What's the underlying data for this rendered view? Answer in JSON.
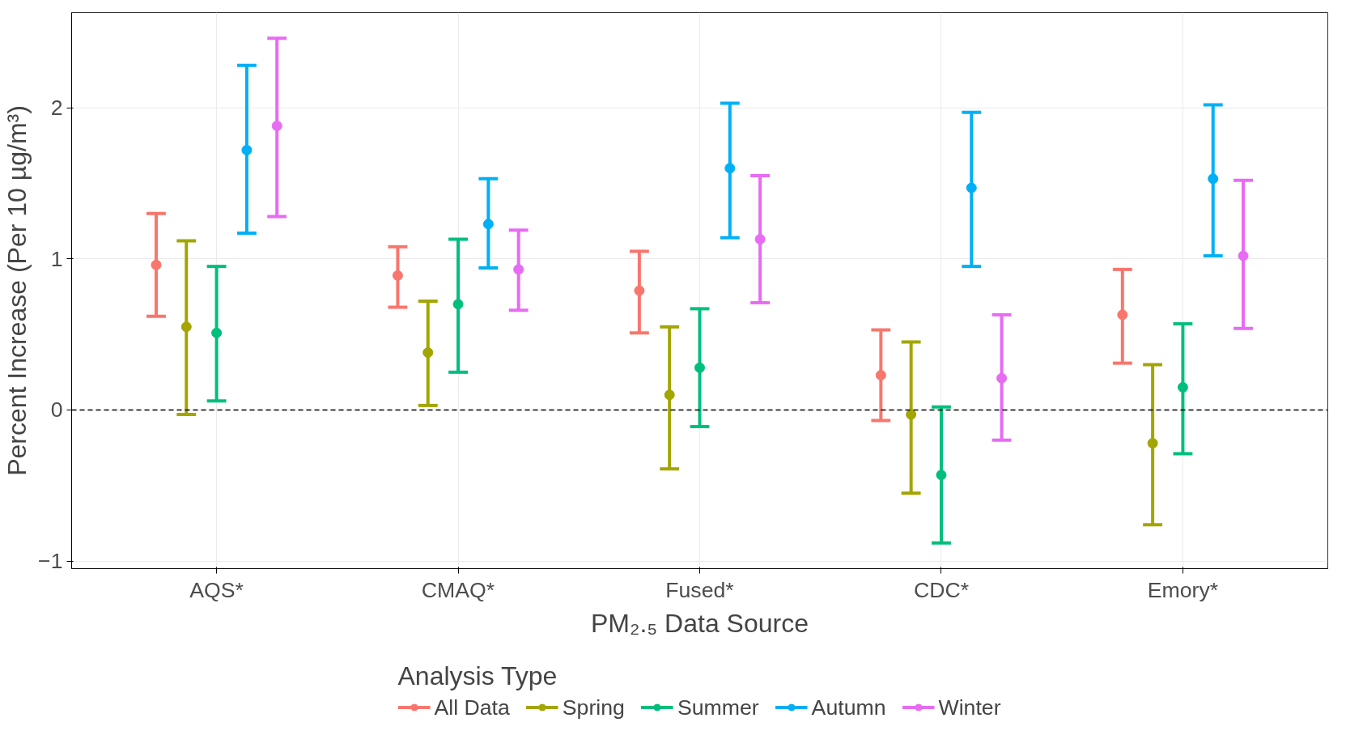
{
  "chart_data": {
    "type": "scatter",
    "xlabel": "PM₂.₅ Data Source",
    "ylabel": "Percent Increase (Per 10 µg/m³)",
    "legend_title": "Analysis Type",
    "categories": [
      "AQS*",
      "CMAQ*",
      "Fused*",
      "CDC*",
      "Emory*"
    ],
    "series": [
      {
        "name": "All Data",
        "color": "#f8766d",
        "values": [
          0.96,
          0.89,
          0.79,
          0.23,
          0.63
        ],
        "errors": [
          [
            0.62,
            1.3
          ],
          [
            0.68,
            1.08
          ],
          [
            0.51,
            1.05
          ],
          [
            -0.07,
            0.53
          ],
          [
            0.31,
            0.93
          ]
        ]
      },
      {
        "name": "Spring",
        "color": "#a3a500",
        "values": [
          0.55,
          0.38,
          0.1,
          -0.03,
          -0.22
        ],
        "errors": [
          [
            -0.03,
            1.12
          ],
          [
            0.03,
            0.72
          ],
          [
            -0.39,
            0.55
          ],
          [
            -0.55,
            0.45
          ],
          [
            -0.76,
            0.3
          ]
        ]
      },
      {
        "name": "Summer",
        "color": "#00bf7d",
        "values": [
          0.51,
          0.7,
          0.28,
          -0.43,
          0.15
        ],
        "errors": [
          [
            0.06,
            0.95
          ],
          [
            0.25,
            1.13
          ],
          [
            -0.11,
            0.67
          ],
          [
            -0.88,
            0.02
          ],
          [
            -0.29,
            0.57
          ]
        ]
      },
      {
        "name": "Autumn",
        "color": "#00b0f6",
        "values": [
          1.72,
          1.23,
          1.6,
          1.47,
          1.53
        ],
        "errors": [
          [
            1.17,
            2.28
          ],
          [
            0.94,
            1.53
          ],
          [
            1.14,
            2.03
          ],
          [
            0.95,
            1.97
          ],
          [
            1.02,
            2.02
          ]
        ]
      },
      {
        "name": "Winter",
        "color": "#e76bf3",
        "values": [
          1.88,
          0.93,
          1.13,
          0.21,
          1.02
        ],
        "errors": [
          [
            1.28,
            2.46
          ],
          [
            0.66,
            1.19
          ],
          [
            0.71,
            1.55
          ],
          [
            -0.2,
            0.63
          ],
          [
            0.54,
            1.52
          ]
        ]
      }
    ],
    "ylim": [
      -1.05,
      2.63
    ],
    "yticks": [
      -1,
      0,
      1,
      2
    ],
    "grid": true,
    "legend": "bottom",
    "marker": "circle",
    "ref_lines": [
      {
        "axis": "y",
        "value": 0,
        "color": "#000000",
        "line_style": "dashed"
      }
    ]
  }
}
